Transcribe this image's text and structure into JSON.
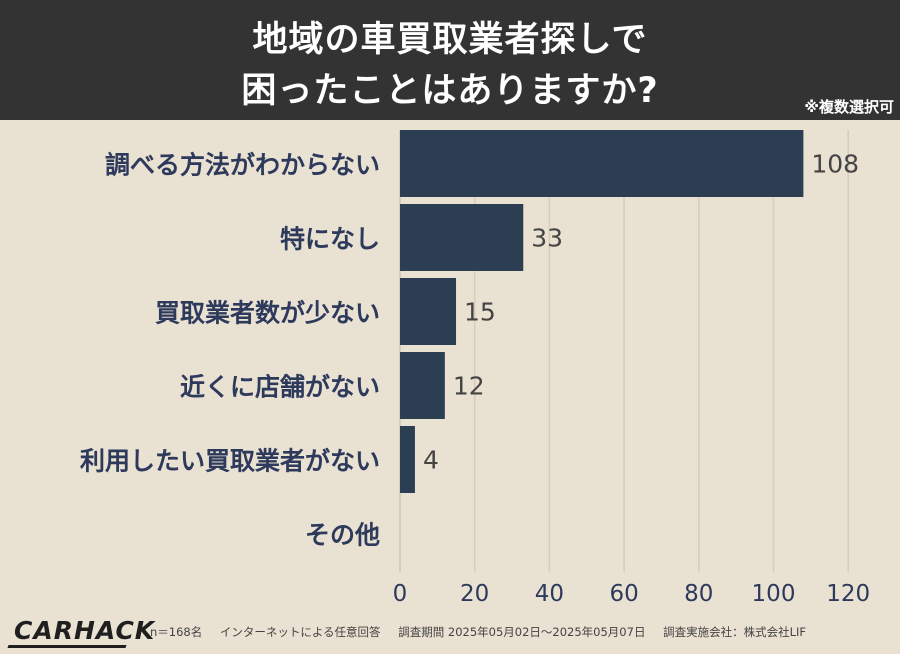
{
  "header": {
    "title_line1": "地域の車買取業者探しで",
    "title_line2": "困ったことはありますか?",
    "note": "※複数選択可"
  },
  "chart_data": {
    "type": "bar",
    "orientation": "horizontal",
    "categories": [
      "調べる方法がわからない",
      "特になし",
      "買取業者数が少ない",
      "近くに店舗がない",
      "利用したい買取業者がない",
      "その他"
    ],
    "values": [
      108,
      33,
      15,
      12,
      4,
      0
    ],
    "value_labels": [
      "108",
      "33",
      "15",
      "12",
      "4",
      ""
    ],
    "xlim": [
      0,
      120
    ],
    "xticks": [
      0,
      20,
      40,
      60,
      80,
      100,
      120
    ],
    "grid": true,
    "bar_color": "#2c3e52"
  },
  "footer": {
    "logo": "CARHACK",
    "sample": "n＝168名",
    "method": "インターネットによる任意回答",
    "period": "調査期間 2025年05月02日～2025年05月07日",
    "company": "調査実施会社：株式会社LIF"
  },
  "colors": {
    "header_bg": "#333333",
    "page_bg": "#e9e1d1",
    "label_color": "#2e3a5c",
    "tick_color": "#2e3a5c"
  }
}
